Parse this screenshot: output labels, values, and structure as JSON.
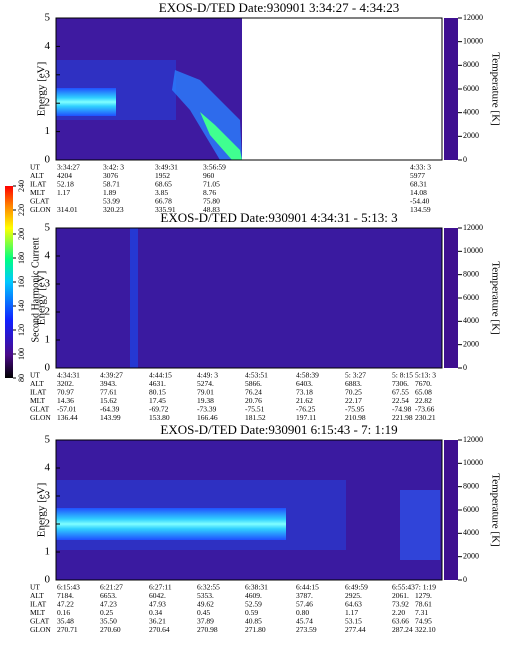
{
  "chart_data": [
    {
      "type": "spectrogram",
      "title": "EXOS-D/TED   Date:930901   3:34:27 - 4:34:23",
      "ylabel": "Energy [eV]",
      "y2label": "Temperature [K]",
      "ylim": [
        0,
        5
      ],
      "yticks": [
        0,
        1,
        2,
        3,
        4,
        5
      ],
      "y2lim": [
        0,
        12000
      ],
      "y2ticks": [
        0,
        2000,
        4000,
        6000,
        8000,
        10000,
        12000
      ],
      "row_labels": [
        "UT",
        "ALT",
        "ILAT",
        "MLT",
        "GLAT",
        "GLON"
      ],
      "rows": [
        [
          "3:34:27",
          "3:42: 3",
          "3:49:31",
          "3:56:59",
          "4:33: 3"
        ],
        [
          "4204",
          "3076",
          "1952",
          "960",
          "5977"
        ],
        [
          "52.18",
          "58.71",
          "68.65",
          "71.05",
          "68.31"
        ],
        [
          "1.17",
          "1.89",
          "3.85",
          "8.76",
          "14.08"
        ],
        [
          null,
          "53.99",
          "66.78",
          "75.80",
          "-54.40"
        ],
        [
          "314.01",
          "320.23",
          "335.91",
          "48.83",
          "134.59"
        ]
      ]
    },
    {
      "type": "spectrogram",
      "title": "EXOS-D/TED   Date:930901   4:34:31 - 5:13: 3",
      "ylabel": "Energy [eV]",
      "y2label": "Temperature [K]",
      "ylim": [
        0,
        5
      ],
      "yticks": [
        0,
        1,
        2,
        3,
        4,
        5
      ],
      "y2lim": [
        0,
        12000
      ],
      "y2ticks": [
        0,
        2000,
        4000,
        6000,
        8000,
        10000,
        12000
      ],
      "row_labels": [
        "UT",
        "ALT",
        "ILAT",
        "MLT",
        "GLAT",
        "GLON"
      ],
      "rows": [
        [
          "4:34:31",
          "4:39:27",
          "4:44:15",
          "4:49: 3",
          "4:53:51",
          "4:58:39",
          "5: 3:27",
          "5: 8:15",
          "5:13: 3"
        ],
        [
          "3202.",
          "3943.",
          "4631.",
          "5274.",
          "5866.",
          "6403.",
          "6883.",
          "7306.",
          "7670."
        ],
        [
          "70.97",
          "77.61",
          "80.15",
          "79.01",
          "76.24",
          "73.18",
          "70.25",
          "67.55",
          "65.08"
        ],
        [
          "14.36",
          "15.62",
          "17.45",
          "19.38",
          "20.76",
          "21.62",
          "22.17",
          "22.54",
          "22.82"
        ],
        [
          "-57.01",
          "-64.39",
          "-69.72",
          "-73.39",
          "-75.51",
          "-76.25",
          "-75.95",
          "-74.98",
          "-73.66"
        ],
        [
          "136.44",
          "143.99",
          "153.80",
          "166.46",
          "181.52",
          "197.11",
          "210.98",
          "221.98",
          "230.21"
        ]
      ]
    },
    {
      "type": "spectrogram",
      "title": "EXOS-D/TED   Date:930901   6:15:43 - 7: 1:19",
      "ylabel": "Energy [eV]",
      "y2label": "Temperature [K]",
      "ylim": [
        0,
        5
      ],
      "yticks": [
        0,
        1,
        2,
        3,
        4,
        5
      ],
      "y2lim": [
        0,
        12000
      ],
      "y2ticks": [
        0,
        2000,
        4000,
        6000,
        8000,
        10000,
        12000
      ],
      "row_labels": [
        "UT",
        "ALT",
        "ILAT",
        "MLT",
        "GLAT",
        "GLON"
      ],
      "rows": [
        [
          "6:15:43",
          "6:21:27",
          "6:27:11",
          "6:32:55",
          "6:38:31",
          "6:44:15",
          "6:49:59",
          "6:55:43",
          "7: 1:19"
        ],
        [
          "7184.",
          "6653.",
          "6042.",
          "5353.",
          "4609.",
          "3787.",
          "2925.",
          "2061.",
          "1279."
        ],
        [
          "47.22",
          "47.23",
          "47.93",
          "49.62",
          "52.59",
          "57.46",
          "64.63",
          "73.92",
          "78.61"
        ],
        [
          "0.16",
          "0.25",
          "0.34",
          "0.45",
          "0.59",
          "0.80",
          "1.17",
          "2.20",
          "7.31"
        ],
        [
          "35.48",
          "35.50",
          "36.21",
          "37.89",
          "40.85",
          "45.74",
          "53.15",
          "63.66",
          "74.95"
        ],
        [
          "270.71",
          "270.60",
          "270.64",
          "270.98",
          "271.80",
          "273.59",
          "277.44",
          "287.24",
          "322.10"
        ]
      ]
    }
  ],
  "colorbar": {
    "label": "Second Harmonic Current",
    "lim": [
      80,
      240
    ],
    "ticks": [
      80,
      100,
      120,
      140,
      160,
      180,
      200,
      220,
      240
    ]
  }
}
